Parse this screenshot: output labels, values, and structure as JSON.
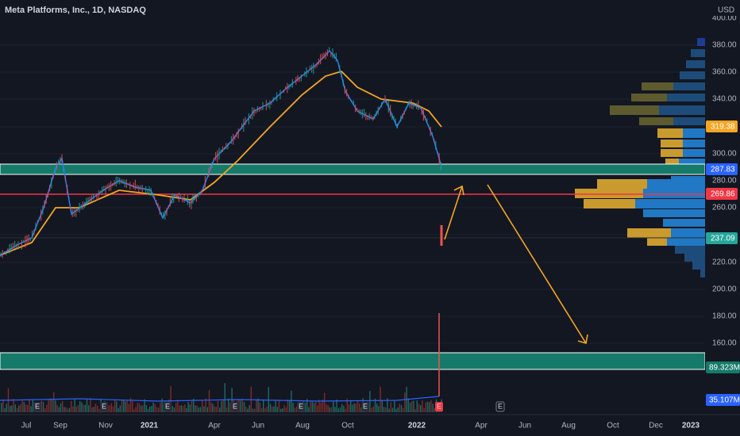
{
  "header": {
    "title": "Meta Platforms, Inc., 1D, NASDAQ",
    "currency": "USD"
  },
  "price_axis": {
    "labels": [
      "400.00",
      "380.00",
      "360.00",
      "340.00",
      "300.00",
      "280.00",
      "260.00",
      "220.00",
      "200.00",
      "180.00",
      "160.00"
    ]
  },
  "badges": {
    "ma_slow": "319.38",
    "zone": "287.83",
    "level": "269.86",
    "last": "237.09",
    "volume_ma": "89.323M",
    "volume": "35.107M"
  },
  "time_axis": {
    "labels": [
      "Jul",
      "Sep",
      "Nov",
      "2021",
      "Apr",
      "Jun",
      "Aug",
      "Oct",
      "2022",
      "Apr",
      "Jun",
      "Aug",
      "Oct",
      "Dec",
      "2023"
    ]
  },
  "earnings": {
    "marker": "E"
  }
}
